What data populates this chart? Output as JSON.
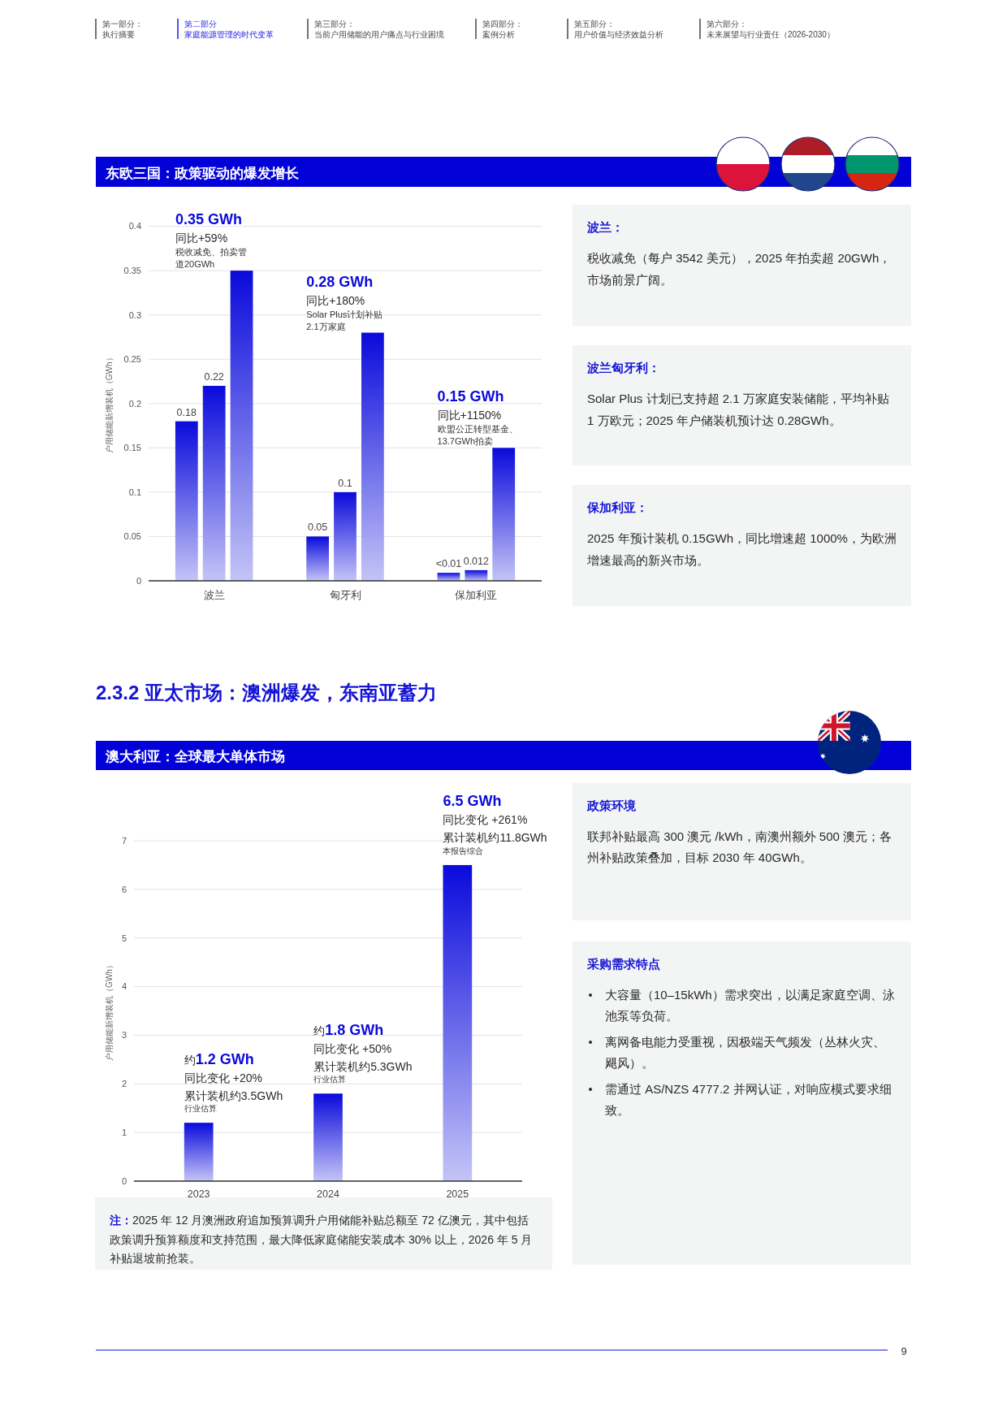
{
  "chart_data": [
    {
      "type": "other",
      "annotations": [
        "第一部分：",
        "执行摘要",
        "第二部分",
        "家庭能源管理的时代变革",
        "第三部分：",
        "当前户用储能的用户痛点与行业困境",
        "第四部分：",
        "案例分析",
        "第五部分：",
        "用户价值与经济效益分析",
        "第六部分：",
        "未来展望与行业责任（2026-2030）"
      ],
      "colors": [
        "#444444",
        "#1a1ae6",
        "#444444",
        "#444444",
        "#444444",
        "#444444"
      ]
    },
    {
      "type": "bar",
      "title": "东欧三国：政策驱动的爆发增长",
      "ylabel": "户用储能新增装机（GWh）",
      "categories": [
        "波兰",
        "匈牙利",
        "保加利亚"
      ],
      "series": [
        {
          "color": "#0a0adc",
          "values": [
            0.18,
            0.05,
            0.009
          ],
          "value_labels": [
            "0.18",
            "0.05",
            "<0.01"
          ]
        },
        {
          "color": "#0a0adc",
          "values": [
            0.22,
            0.1,
            0.012
          ],
          "value_labels": [
            "0.22",
            "0.1",
            "0.012"
          ]
        },
        {
          "color": "#0a0adc",
          "values": [
            0.35,
            0.28,
            0.15
          ]
        }
      ],
      "ylim": [
        0,
        0.4
      ],
      "yticks": [
        0,
        0.05,
        0.1,
        0.15,
        0.2,
        0.25,
        0.3,
        0.35,
        0.4
      ],
      "grid": "y",
      "annotations": [
        "0.35 GWh",
        "同比+59%",
        "税收减免、拍卖管道20GWh",
        "0.28 GWh",
        "同比+180%",
        "Solar Plus计划补贴2.1万家庭",
        "0.15 GWh",
        "同比+1150%",
        "欧盟公正转型基金、13.7GWh拍卖"
      ]
    },
    {
      "type": "other",
      "title": "波兰：",
      "annotations": [
        "税收减免（每户 3542 美元），2025 年拍卖超 20GWh，市场前景广阔。"
      ]
    },
    {
      "type": "other",
      "title": "波兰匈牙利：",
      "annotations": [
        "Solar Plus 计划已支持超 2.1 万家庭安装储能，平均补贴 1 万欧元；2025 年户储装机预计达 0.28GWh。"
      ]
    },
    {
      "type": "other",
      "title": "保加利亚：",
      "annotations": [
        "2025 年预计装机 0.15GWh，同比增速超 1000%，为欧洲增速最高的新兴市场。"
      ]
    },
    {
      "type": "other",
      "title": "2.3.2 亚太市场：澳洲爆发，东南亚蓄力"
    },
    {
      "type": "bar",
      "title": "澳大利亚：全球最大单体市场",
      "ylabel": "户用储能新增装机（GWh）",
      "categories": [
        "2023",
        "2024",
        "2025"
      ],
      "values": [
        1.2,
        1.8,
        6.5
      ],
      "color": "#0a0adc",
      "ylim": [
        0,
        7
      ],
      "yticks": [
        0,
        1,
        2,
        3,
        4,
        5,
        6,
        7
      ],
      "grid": "y",
      "annotations": [
        "约1.2 GWh",
        "同比变化 +20%",
        "累计装机约3.5GWh",
        "行业估算",
        "约1.8 GWh",
        "同比变化 +50%",
        "累计装机约5.3GWh",
        "行业估算",
        "6.5 GWh",
        "同比变化 +261%",
        "累计装机约11.8GWh",
        "本报告综合",
        "注：2025 年 12 月澳洲政府追加预算调升户用储能补贴总额至 72 亿澳元，其中包括政策调升预算额度和支持范围，最大降低家庭储能安装成本 30% 以上，2026 年 5 月补贴退坡前抢装。"
      ]
    },
    {
      "type": "other",
      "title": "政策环境",
      "annotations": [
        "联邦补贴最高 300 澳元 /kWh，南澳州额外 500 澳元；各州补贴政策叠加，目标 2030 年 40GWh。"
      ]
    },
    {
      "type": "other",
      "title": "采购需求特点",
      "annotations": [
        "大容量（10–15kWh）需求突出，以满足家庭空调、泳池泵等负荷。",
        "离网备电能力受重视，因极端天气频发（丛林火灾、飓风）。",
        "需通过 AS/NZS 4777.2 并网认证，对响应模式要求细致。"
      ]
    },
    {
      "type": "other",
      "annotations": [
        "9"
      ]
    }
  ]
}
